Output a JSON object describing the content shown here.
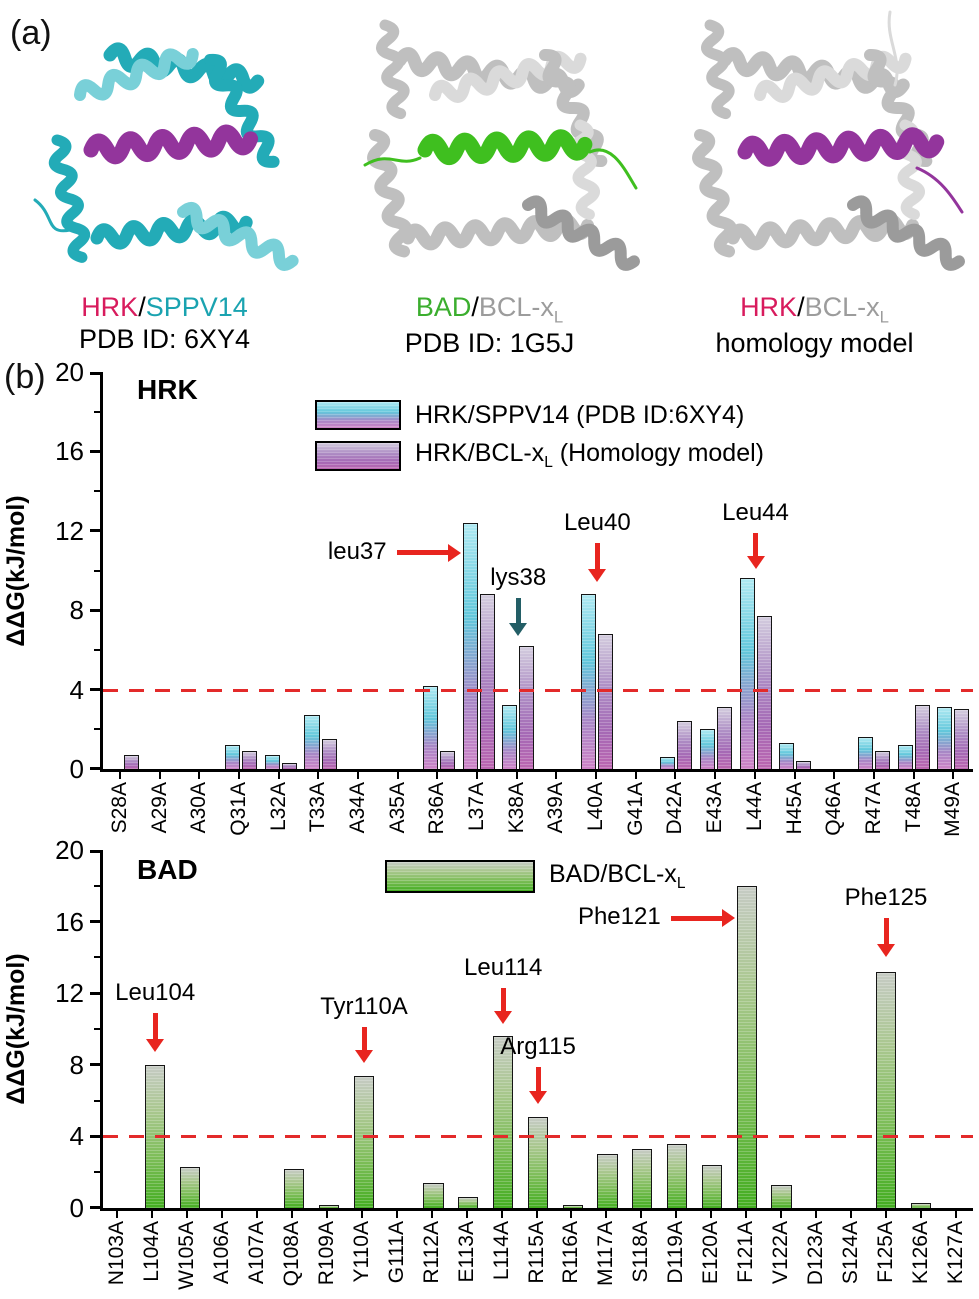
{
  "panels": {
    "a_label": "(a)",
    "b_label": "(b)"
  },
  "colors": {
    "hrk_text": "#D81B5D",
    "sppv14_text": "#1AA3B0",
    "bad_text": "#3BAE2E",
    "bcl_text": "#9C9C9C",
    "reference_red": "#E32A2A",
    "arrow_red": "#E8251F",
    "arrow_teal": "#235E66"
  },
  "structures": [
    {
      "name": "hrk-sppv14-structure",
      "caption_parts": [
        {
          "text": "HRK",
          "color": "#D81B5D"
        },
        {
          "text": "/",
          "color": "#000000"
        },
        {
          "text": "SPPV14",
          "color": "#1AA3B0"
        }
      ],
      "subline": "PDB ID: 6XY4",
      "body_color": "#23ABB7",
      "light_color": "#79D0D8",
      "dark_color": "#1B8A94",
      "helix_color": "#93359C"
    },
    {
      "name": "bad-bclxl-structure",
      "caption_parts": [
        {
          "text": "BAD",
          "color": "#3BAE2E"
        },
        {
          "text": "/",
          "color": "#000000"
        },
        {
          "text": "BCL-x",
          "color": "#9C9C9C"
        },
        {
          "text": "L",
          "color": "#9C9C9C",
          "sub": true
        }
      ],
      "subline": "PDB ID: 1G5J",
      "body_color": "#BFBFBF",
      "light_color": "#DADADA",
      "dark_color": "#9B9B9B",
      "helix_color": "#3FBF1F"
    },
    {
      "name": "hrk-bclxl-structure",
      "caption_parts": [
        {
          "text": "HRK",
          "color": "#D81B5D"
        },
        {
          "text": "/",
          "color": "#000000"
        },
        {
          "text": "BCL-x",
          "color": "#9C9C9C"
        },
        {
          "text": "L",
          "color": "#9C9C9C",
          "sub": true
        }
      ],
      "subline": "homology model",
      "body_color": "#BFBFBF",
      "light_color": "#DADADA",
      "dark_color": "#9B9B9B",
      "helix_color": "#93359C"
    }
  ],
  "chart_data": [
    {
      "type": "bar",
      "title": "HRK",
      "xlabel": "",
      "ylabel": "ΔΔG(kJ/mol)",
      "ylim": [
        0,
        20
      ],
      "yticks": [
        0,
        4,
        8,
        12,
        16,
        20
      ],
      "grid": false,
      "legend_position": "top-center",
      "reference_line": {
        "y": 4,
        "color": "#E32A2A",
        "style": "dashed"
      },
      "categories": [
        "S28A",
        "A29A",
        "A30A",
        "Q31A",
        "L32A",
        "T33A",
        "A34A",
        "A35A",
        "R36A",
        "L37A",
        "K38A",
        "A39A",
        "L40A",
        "G41A",
        "D42A",
        "E43A",
        "L44A",
        "H45A",
        "Q46A",
        "R47A",
        "T48A",
        "M49A"
      ],
      "series": [
        {
          "name_parts": [
            {
              "text": "HRK/SPPV14 (PDB ID:6XY4)"
            }
          ],
          "gradient": [
            "#AEE9F2 0%",
            "#62C7DB 38%",
            "#A887C6 72%",
            "#CD83C6 100%"
          ],
          "values": [
            0,
            0,
            0,
            1.2,
            0.7,
            2.7,
            0,
            0,
            4.2,
            12.4,
            3.2,
            0,
            8.8,
            0,
            0.6,
            2.0,
            9.6,
            1.3,
            0,
            1.6,
            1.2,
            3.1
          ]
        },
        {
          "name_parts": [
            {
              "text": "HRK/BCL-x"
            },
            {
              "text": "L",
              "sub": true
            },
            {
              "text": "  (Homology model)"
            }
          ],
          "gradient": [
            "#D3CCDE 0%",
            "#AD8CC4 40%",
            "#A569B5 72%",
            "#BB66B0 100%"
          ],
          "values": [
            0.7,
            0,
            0,
            0.9,
            0.3,
            1.5,
            0,
            0,
            0.9,
            8.8,
            6.2,
            0,
            6.8,
            0,
            2.4,
            3.1,
            7.7,
            0.4,
            0,
            0.9,
            3.2,
            3.0
          ]
        }
      ],
      "annotations": [
        {
          "label": "leu37",
          "category": "L37A",
          "kind": "right",
          "color": "#E8251F",
          "y": 10.9
        },
        {
          "label": "lys38",
          "category": "K38A",
          "kind": "down",
          "color": "#235E66",
          "tip_y": 6.7,
          "tail_y": 8.6
        },
        {
          "label": "Leu40",
          "category": "L40A",
          "kind": "down",
          "color": "#E8251F",
          "tip_y": 9.4,
          "tail_y": 11.4
        },
        {
          "label": "Leu44",
          "category": "L44A",
          "kind": "down",
          "color": "#E8251F",
          "tip_y": 10.1,
          "tail_y": 11.9
        }
      ]
    },
    {
      "type": "bar",
      "title": "BAD",
      "xlabel": "",
      "ylabel": "ΔΔG(kJ/mol)",
      "ylim": [
        0,
        20
      ],
      "yticks": [
        0,
        4,
        8,
        12,
        16,
        20
      ],
      "grid": false,
      "legend_position": "top-center",
      "reference_line": {
        "y": 4,
        "color": "#E32A2A",
        "style": "dashed"
      },
      "categories": [
        "N103A",
        "L104A",
        "W105A",
        "A106A",
        "A107A",
        "Q108A",
        "R109A",
        "Y110A",
        "G111A",
        "R112A",
        "E113A",
        "L114A",
        "R115A",
        "R116A",
        "M117A",
        "S118A",
        "D119A",
        "E120A",
        "F121A",
        "V122A",
        "D123A",
        "S124A",
        "F125A",
        "K126A",
        "K127A"
      ],
      "series": [
        {
          "name_parts": [
            {
              "text": "BAD/BCL-x"
            },
            {
              "text": "L",
              "sub": true
            }
          ],
          "gradient": [
            "#C6CBC4 0%",
            "#A9C78E 32%",
            "#7CBD57 65%",
            "#43AD20 100%"
          ],
          "values": [
            0,
            8.0,
            2.3,
            0,
            0,
            2.2,
            0.15,
            7.4,
            0,
            1.4,
            0.6,
            9.6,
            5.1,
            0.15,
            3.0,
            3.3,
            3.6,
            2.4,
            18.0,
            1.3,
            0,
            0,
            13.2,
            0.3,
            0
          ]
        }
      ],
      "annotations": [
        {
          "label": "Leu104",
          "category": "L104A",
          "kind": "down",
          "color": "#E8251F",
          "tip_y": 8.7,
          "tail_y": 10.9
        },
        {
          "label": "Tyr110A",
          "category": "Y110A",
          "kind": "down",
          "color": "#E8251F",
          "tip_y": 8.1,
          "tail_y": 10.1
        },
        {
          "label": "Leu114",
          "category": "L114A",
          "kind": "down",
          "color": "#E8251F",
          "tip_y": 10.3,
          "tail_y": 12.3
        },
        {
          "label": "Arg115",
          "category": "R115A",
          "kind": "down",
          "color": "#E8251F",
          "tip_y": 5.8,
          "tail_y": 7.9
        },
        {
          "label": "Phe121",
          "category": "F121A",
          "kind": "right",
          "color": "#E8251F",
          "y": 16.2
        },
        {
          "label": "Phe125",
          "category": "F125A",
          "kind": "down",
          "color": "#E8251F",
          "tip_y": 14.0,
          "tail_y": 16.2
        }
      ]
    }
  ]
}
